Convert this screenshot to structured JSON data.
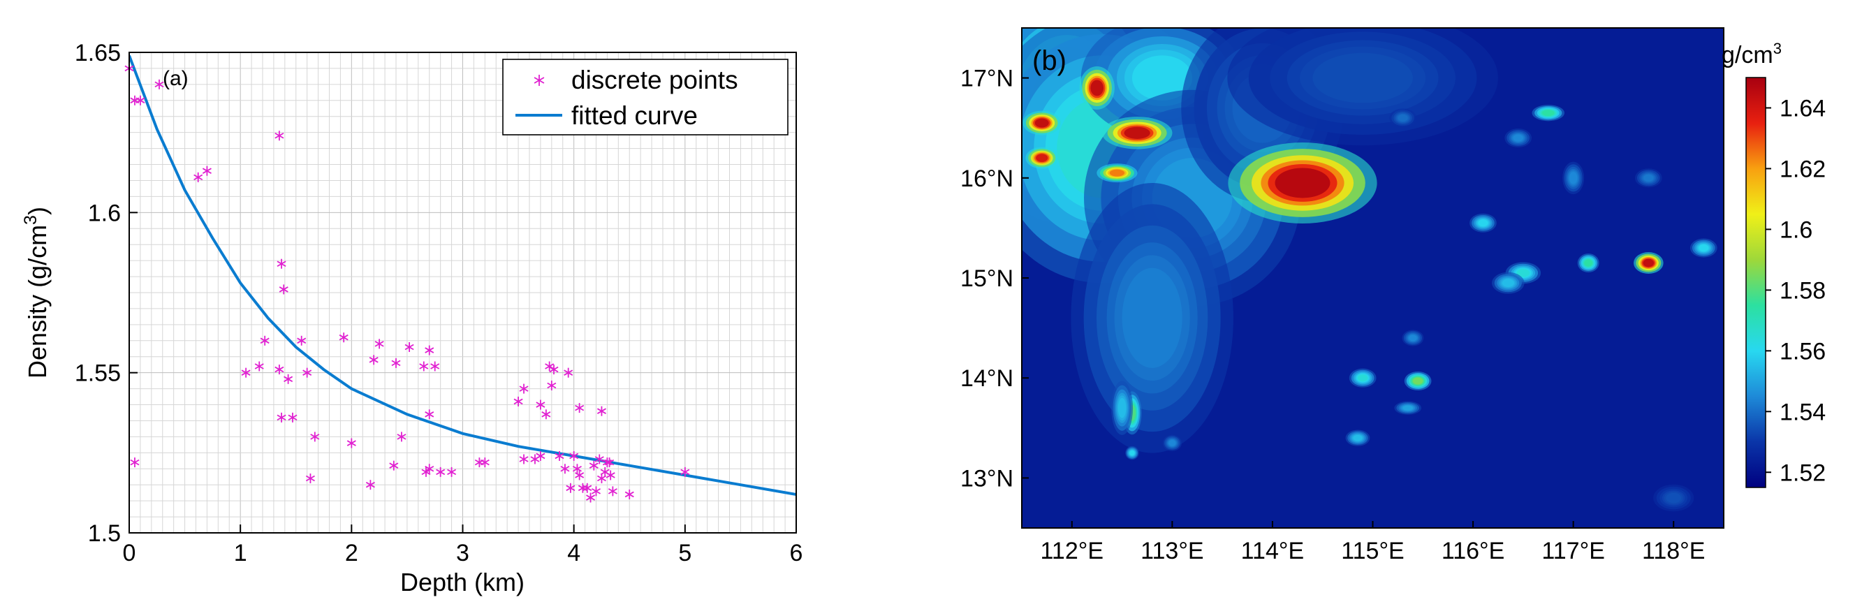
{
  "chart_data": [
    {
      "type": "scatter",
      "panel_label": "(a)",
      "xlabel": "Depth (km)",
      "ylabel": "Density (g/cm",
      "ylabel_sup": "3",
      "ylabel_close": ")",
      "xlim": [
        0,
        6
      ],
      "ylim": [
        1.5,
        1.65
      ],
      "xticks": [
        0,
        1,
        2,
        3,
        4,
        5,
        6
      ],
      "xtick_labels": [
        "0",
        "1",
        "2",
        "3",
        "4",
        "5",
        "6"
      ],
      "yticks": [
        1.5,
        1.55,
        1.6,
        1.65
      ],
      "ytick_labels": [
        "1.5",
        "1.55",
        "1.6",
        "1.65"
      ],
      "grid": true,
      "legend_position": "top-right",
      "series": [
        {
          "name": "discrete points",
          "color": "#e020d0",
          "marker": "asterisk",
          "points": [
            [
              0.0,
              1.645
            ],
            [
              0.05,
              1.635
            ],
            [
              0.1,
              1.635
            ],
            [
              0.27,
              1.64
            ],
            [
              0.05,
              1.522
            ],
            [
              0.62,
              1.611
            ],
            [
              0.7,
              1.613
            ],
            [
              1.35,
              1.624
            ],
            [
              1.37,
              1.584
            ],
            [
              1.39,
              1.576
            ],
            [
              1.22,
              1.56
            ],
            [
              1.05,
              1.55
            ],
            [
              1.17,
              1.552
            ],
            [
              1.35,
              1.551
            ],
            [
              1.43,
              1.548
            ],
            [
              1.37,
              1.536
            ],
            [
              1.47,
              1.536
            ],
            [
              1.55,
              1.56
            ],
            [
              1.6,
              1.55
            ],
            [
              1.67,
              1.53
            ],
            [
              1.63,
              1.517
            ],
            [
              1.93,
              1.561
            ],
            [
              2.0,
              1.528
            ],
            [
              2.2,
              1.554
            ],
            [
              2.25,
              1.559
            ],
            [
              2.17,
              1.515
            ],
            [
              2.4,
              1.553
            ],
            [
              2.45,
              1.53
            ],
            [
              2.52,
              1.558
            ],
            [
              2.38,
              1.521
            ],
            [
              2.65,
              1.552
            ],
            [
              2.7,
              1.557
            ],
            [
              2.75,
              1.552
            ],
            [
              2.7,
              1.537
            ],
            [
              2.67,
              1.519
            ],
            [
              2.7,
              1.52
            ],
            [
              2.8,
              1.519
            ],
            [
              2.9,
              1.519
            ],
            [
              3.15,
              1.522
            ],
            [
              3.2,
              1.522
            ],
            [
              3.5,
              1.541
            ],
            [
              3.55,
              1.545
            ],
            [
              3.55,
              1.523
            ],
            [
              3.65,
              1.523
            ],
            [
              3.7,
              1.524
            ],
            [
              3.7,
              1.54
            ],
            [
              3.75,
              1.537
            ],
            [
              3.78,
              1.552
            ],
            [
              3.82,
              1.551
            ],
            [
              3.8,
              1.546
            ],
            [
              3.87,
              1.524
            ],
            [
              3.92,
              1.52
            ],
            [
              3.95,
              1.55
            ],
            [
              3.97,
              1.514
            ],
            [
              4.0,
              1.524
            ],
            [
              4.03,
              1.52
            ],
            [
              4.05,
              1.539
            ],
            [
              4.05,
              1.518
            ],
            [
              4.08,
              1.514
            ],
            [
              4.12,
              1.514
            ],
            [
              4.15,
              1.511
            ],
            [
              4.18,
              1.521
            ],
            [
              4.2,
              1.513
            ],
            [
              4.23,
              1.523
            ],
            [
              4.25,
              1.538
            ],
            [
              4.25,
              1.517
            ],
            [
              4.28,
              1.519
            ],
            [
              4.3,
              1.522
            ],
            [
              4.32,
              1.522
            ],
            [
              4.33,
              1.518
            ],
            [
              4.35,
              1.513
            ],
            [
              4.5,
              1.512
            ],
            [
              5.0,
              1.519
            ]
          ]
        },
        {
          "name": "fitted curve",
          "color": "#0a7cd0",
          "type": "line",
          "x": [
            0,
            0.25,
            0.5,
            0.75,
            1,
            1.25,
            1.5,
            1.75,
            2,
            2.5,
            3,
            3.5,
            4,
            4.5,
            5,
            5.5,
            6
          ],
          "y": [
            1.649,
            1.626,
            1.607,
            1.592,
            1.578,
            1.567,
            1.558,
            1.551,
            1.545,
            1.537,
            1.531,
            1.527,
            1.524,
            1.521,
            1.518,
            1.515,
            1.512
          ]
        }
      ]
    },
    {
      "type": "heatmap",
      "panel_label": "(b)",
      "xlim": [
        111.5,
        118.5
      ],
      "ylim": [
        12.5,
        17.5
      ],
      "xticks": [
        112,
        113,
        114,
        115,
        116,
        117,
        118
      ],
      "xtick_labels": [
        "112°E",
        "113°E",
        "114°E",
        "115°E",
        "116°E",
        "117°E",
        "118°E"
      ],
      "yticks": [
        13,
        14,
        15,
        16,
        17
      ],
      "ytick_labels": [
        "13°N",
        "14°N",
        "15°N",
        "16°N",
        "17°N"
      ],
      "colorbar": {
        "title": "g/cm",
        "title_sup": "3",
        "range": [
          1.515,
          1.65
        ],
        "ticks": [
          1.52,
          1.54,
          1.56,
          1.58,
          1.6,
          1.62,
          1.64
        ],
        "tick_labels": [
          "1.52",
          "1.54",
          "1.56",
          "1.58",
          "1.6",
          "1.62",
          "1.64"
        ],
        "colors": [
          "#000080",
          "#0a35a8",
          "#1e8ad8",
          "#28d8f0",
          "#2ce0a0",
          "#9ed83a",
          "#f0f018",
          "#f8a010",
          "#e82010",
          "#a80010"
        ]
      },
      "background_value": 1.523,
      "features": [
        {
          "lon": 111.95,
          "lat": 16.75,
          "value": 1.57,
          "rx": 0.7,
          "ry": 0.9
        },
        {
          "lon": 112.3,
          "lat": 16.3,
          "value": 1.565,
          "rx": 0.9,
          "ry": 1.0
        },
        {
          "lon": 112.9,
          "lat": 17.0,
          "value": 1.56,
          "rx": 0.6,
          "ry": 0.45
        },
        {
          "lon": 113.2,
          "lat": 15.8,
          "value": 1.548,
          "rx": 0.8,
          "ry": 0.8
        },
        {
          "lon": 112.8,
          "lat": 14.6,
          "value": 1.543,
          "rx": 0.6,
          "ry": 1.0
        },
        {
          "lon": 113.9,
          "lat": 16.7,
          "value": 1.538,
          "rx": 0.6,
          "ry": 0.7
        },
        {
          "lon": 114.9,
          "lat": 17.0,
          "value": 1.534,
          "rx": 1.0,
          "ry": 0.5
        },
        {
          "lon": 112.25,
          "lat": 16.9,
          "value": 1.645,
          "rx": 0.13,
          "ry": 0.16
        },
        {
          "lon": 112.65,
          "lat": 16.45,
          "value": 1.645,
          "rx": 0.26,
          "ry": 0.12
        },
        {
          "lon": 111.7,
          "lat": 16.55,
          "value": 1.645,
          "rx": 0.14,
          "ry": 0.09
        },
        {
          "lon": 111.7,
          "lat": 16.2,
          "value": 1.64,
          "rx": 0.12,
          "ry": 0.08
        },
        {
          "lon": 112.45,
          "lat": 16.05,
          "value": 1.625,
          "rx": 0.15,
          "ry": 0.07
        },
        {
          "lon": 114.3,
          "lat": 15.95,
          "value": 1.648,
          "rx": 0.55,
          "ry": 0.3
        },
        {
          "lon": 117.75,
          "lat": 15.15,
          "value": 1.645,
          "rx": 0.11,
          "ry": 0.08
        },
        {
          "lon": 117.15,
          "lat": 15.15,
          "value": 1.575,
          "rx": 0.08,
          "ry": 0.07
        },
        {
          "lon": 116.5,
          "lat": 15.05,
          "value": 1.565,
          "rx": 0.13,
          "ry": 0.08
        },
        {
          "lon": 116.35,
          "lat": 14.95,
          "value": 1.555,
          "rx": 0.12,
          "ry": 0.08
        },
        {
          "lon": 116.1,
          "lat": 15.55,
          "value": 1.56,
          "rx": 0.1,
          "ry": 0.07
        },
        {
          "lon": 116.75,
          "lat": 16.65,
          "value": 1.575,
          "rx": 0.12,
          "ry": 0.06
        },
        {
          "lon": 118.3,
          "lat": 15.3,
          "value": 1.56,
          "rx": 0.1,
          "ry": 0.07
        },
        {
          "lon": 115.45,
          "lat": 13.97,
          "value": 1.585,
          "rx": 0.1,
          "ry": 0.07
        },
        {
          "lon": 114.9,
          "lat": 14.0,
          "value": 1.565,
          "rx": 0.1,
          "ry": 0.07
        },
        {
          "lon": 115.35,
          "lat": 13.7,
          "value": 1.55,
          "rx": 0.1,
          "ry": 0.05
        },
        {
          "lon": 115.4,
          "lat": 14.4,
          "value": 1.545,
          "rx": 0.08,
          "ry": 0.06
        },
        {
          "lon": 114.85,
          "lat": 13.4,
          "value": 1.555,
          "rx": 0.09,
          "ry": 0.06
        },
        {
          "lon": 112.6,
          "lat": 13.65,
          "value": 1.58,
          "rx": 0.07,
          "ry": 0.16
        },
        {
          "lon": 112.5,
          "lat": 13.7,
          "value": 1.555,
          "rx": 0.08,
          "ry": 0.2
        },
        {
          "lon": 112.6,
          "lat": 13.25,
          "value": 1.56,
          "rx": 0.05,
          "ry": 0.05
        },
        {
          "lon": 113.0,
          "lat": 13.35,
          "value": 1.545,
          "rx": 0.07,
          "ry": 0.06
        },
        {
          "lon": 116.45,
          "lat": 16.4,
          "value": 1.545,
          "rx": 0.1,
          "ry": 0.07
        },
        {
          "lon": 117.0,
          "lat": 16.0,
          "value": 1.545,
          "rx": 0.08,
          "ry": 0.12
        },
        {
          "lon": 117.75,
          "lat": 16.0,
          "value": 1.542,
          "rx": 0.1,
          "ry": 0.07
        },
        {
          "lon": 115.3,
          "lat": 16.6,
          "value": 1.54,
          "rx": 0.1,
          "ry": 0.07
        },
        {
          "lon": 118.0,
          "lat": 12.8,
          "value": 1.535,
          "rx": 0.15,
          "ry": 0.1
        }
      ]
    }
  ]
}
